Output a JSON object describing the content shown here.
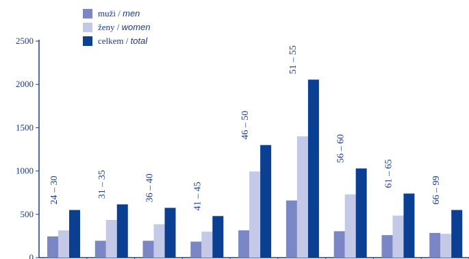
{
  "chart_data": {
    "type": "bar",
    "categories": [
      "24 – 30",
      "31 – 35",
      "36 – 40",
      "41 – 45",
      "46 – 50",
      "51 – 55",
      "56 – 60",
      "61 – 65",
      "66 – 99"
    ],
    "series": [
      {
        "name_cz": "muži",
        "name_en": "men",
        "color": "#7a87c4",
        "values": [
          245,
          195,
          195,
          185,
          315,
          660,
          305,
          260,
          285
        ]
      },
      {
        "name_cz": "ženy",
        "name_en": "women",
        "color": "#c3c9e6",
        "values": [
          315,
          435,
          385,
          300,
          995,
          1400,
          730,
          485,
          275
        ]
      },
      {
        "name_cz": "celkem",
        "name_en": "total",
        "color": "#0b3f92",
        "values": [
          550,
          615,
          575,
          480,
          1300,
          2055,
          1030,
          740,
          550
        ]
      }
    ],
    "yticks": [
      0,
      500,
      1000,
      1500,
      2000,
      2500
    ],
    "ylim": [
      0,
      2500
    ],
    "legend": "top-left",
    "grid": false
  }
}
